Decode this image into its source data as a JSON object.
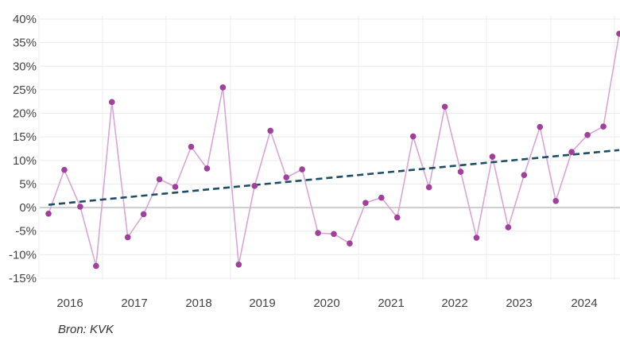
{
  "chart_data": {
    "type": "line",
    "ylim": [
      -15,
      40
    ],
    "yticks": [
      40,
      35,
      30,
      25,
      20,
      15,
      10,
      5,
      0,
      -5,
      -10,
      -15
    ],
    "ytick_labels": [
      "40%",
      "35%",
      "30%",
      "25%",
      "20%",
      "15%",
      "10%",
      "5%",
      "0%",
      "-5%",
      "-10%",
      "-15%"
    ],
    "xticks": [
      "2016",
      "2017",
      "2018",
      "2019",
      "2020",
      "2021",
      "2022",
      "2023",
      "2024"
    ],
    "grid": true,
    "series": [
      {
        "color": "#a0409a",
        "line_color": "#d9a5d6",
        "values": [
          -1.3,
          8.0,
          0.2,
          -12.4,
          22.4,
          -6.3,
          -1.4,
          6.0,
          4.4,
          12.9,
          8.3,
          25.5,
          -12.1,
          4.6,
          16.3,
          6.4,
          8.1,
          -5.4,
          -5.6,
          -7.6,
          1.0,
          2.1,
          -2.1,
          15.1,
          4.3,
          21.4,
          7.6,
          -6.4,
          10.8,
          -4.2,
          6.9,
          17.1,
          1.4,
          11.8,
          15.4,
          17.2,
          36.9
        ]
      }
    ],
    "trendline": {
      "start": 0.6,
      "end": 12.2,
      "color": "#1d4e63",
      "style": "dashed"
    },
    "zero_line_color": "#cccccc"
  },
  "source": "Bron: KVK"
}
